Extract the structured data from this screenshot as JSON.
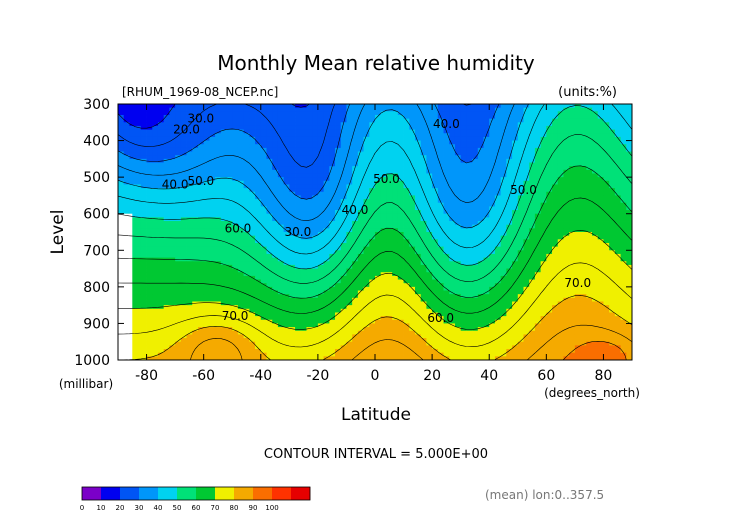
{
  "chart_data": {
    "type": "heatmap",
    "title": "Monthly Mean relative humidity",
    "file_label": "[RHUM_1969-08_NCEP.nc]",
    "units_label": "(units:%)",
    "xlabel": "Latitude",
    "x_unit": "(degrees_north)",
    "ylabel": "Level",
    "y_unit": "(millibar)",
    "xlim": [
      -90,
      90
    ],
    "ylim": [
      1000,
      300
    ],
    "x_ticks": [
      -80,
      -60,
      -40,
      -20,
      0,
      20,
      40,
      60,
      80
    ],
    "y_ticks": [
      300,
      400,
      500,
      600,
      700,
      800,
      900,
      1000
    ],
    "contour_interval_text": "CONTOUR INTERVAL = 5.000E+00",
    "footer_text": "(mean) lon:0..357.5",
    "colorbar": {
      "ticks": [
        0,
        10,
        20,
        30,
        40,
        50,
        60,
        70,
        80,
        90,
        100
      ],
      "colors": [
        "#7b00c8",
        "#0000f0",
        "#0055f5",
        "#0096fa",
        "#00d2f0",
        "#00e178",
        "#00c832",
        "#f0f000",
        "#f5aa00",
        "#fa6e00",
        "#ff3200",
        "#e60000"
      ]
    },
    "contour_labels": [
      {
        "text": "20.0",
        "lat": -66,
        "level": 370
      },
      {
        "text": "30.0",
        "lat": -61,
        "level": 340
      },
      {
        "text": "40.0",
        "lat": -70,
        "level": 520
      },
      {
        "text": "50.0",
        "lat": -61,
        "level": 510
      },
      {
        "text": "60.0",
        "lat": -48,
        "level": 640
      },
      {
        "text": "70.0",
        "lat": -49,
        "level": 880
      },
      {
        "text": "30.0",
        "lat": -27,
        "level": 650
      },
      {
        "text": "40.0",
        "lat": -7,
        "level": 590
      },
      {
        "text": "50.0",
        "lat": 4,
        "level": 505
      },
      {
        "text": "40.0",
        "lat": 25,
        "level": 355
      },
      {
        "text": "50.0",
        "lat": 52,
        "level": 535
      },
      {
        "text": "60.0",
        "lat": 23,
        "level": 885
      },
      {
        "text": "70.0",
        "lat": 71,
        "level": 790
      }
    ]
  }
}
